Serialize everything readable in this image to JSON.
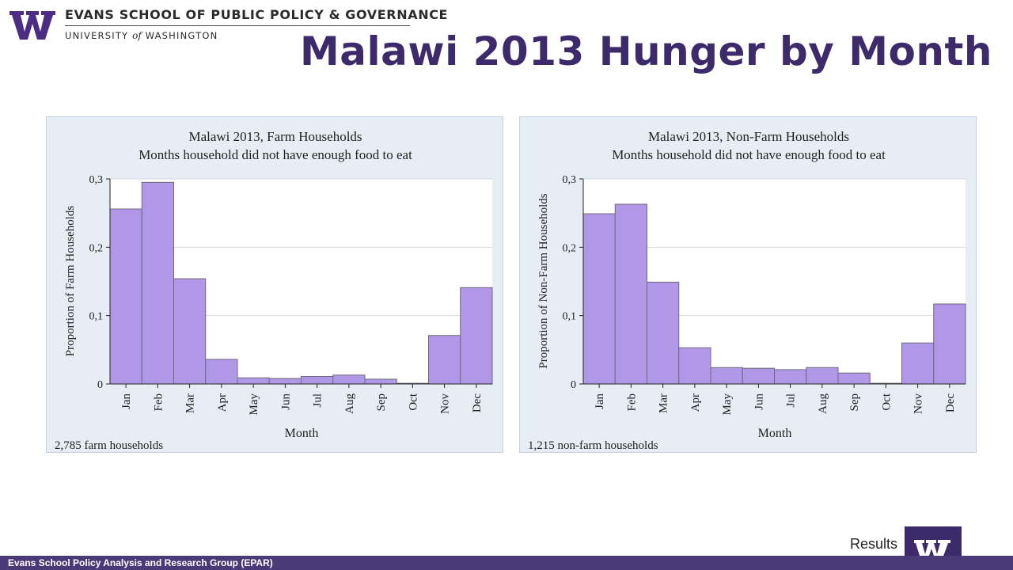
{
  "header": {
    "institution": "EVANS SCHOOL OF PUBLIC POLICY & GOVERNANCE",
    "university_prefix": "UNIVERSITY",
    "university_of": "of",
    "university_suffix": "WASHINGTON",
    "slide_title": "Malawi 2013 Hunger by Month"
  },
  "footer": {
    "text": "Evans School Policy Analysis and Research Group (EPAR)",
    "section": "Results"
  },
  "colors": {
    "bar_fill": "#b197e8",
    "bar_stroke": "#6f6a7a",
    "panel_bg": "#e6edf4",
    "brand_purple": "#3d2a6b",
    "footer_bar": "#4b3a78"
  },
  "chart_data": [
    {
      "type": "bar",
      "title": "Malawi 2013, Farm Households",
      "subtitle": "Months household did not have enough food to eat",
      "xlabel": "Month",
      "ylabel": "Proportion of Farm Households",
      "categories": [
        "Jan",
        "Feb",
        "Mar",
        "Apr",
        "May",
        "Jun",
        "Jul",
        "Aug",
        "Sep",
        "Oct",
        "Nov",
        "Dec"
      ],
      "values": [
        0.256,
        0.295,
        0.154,
        0.036,
        0.009,
        0.008,
        0.011,
        0.013,
        0.007,
        0.001,
        0.071,
        0.141
      ],
      "ylim": [
        0,
        0.3
      ],
      "yticks": [
        0,
        0.1,
        0.2,
        0.3
      ],
      "ytick_labels": [
        "0",
        "0,1",
        "0,2",
        "0,3"
      ],
      "grid": true,
      "note": "2,785 farm households"
    },
    {
      "type": "bar",
      "title": "Malawi 2013, Non-Farm Households",
      "subtitle": "Months household did not have enough food to eat",
      "xlabel": "Month",
      "ylabel": "Proportion of Non-Farm Households",
      "categories": [
        "Jan",
        "Feb",
        "Mar",
        "Apr",
        "May",
        "Jun",
        "Jul",
        "Aug",
        "Sep",
        "Oct",
        "Nov",
        "Dec"
      ],
      "values": [
        0.249,
        0.263,
        0.149,
        0.053,
        0.024,
        0.023,
        0.021,
        0.024,
        0.016,
        0.001,
        0.06,
        0.117
      ],
      "ylim": [
        0,
        0.3
      ],
      "yticks": [
        0,
        0.1,
        0.2,
        0.3
      ],
      "ytick_labels": [
        "0",
        "0,1",
        "0,2",
        "0,3"
      ],
      "grid": true,
      "note": "1,215 non-farm households"
    }
  ]
}
